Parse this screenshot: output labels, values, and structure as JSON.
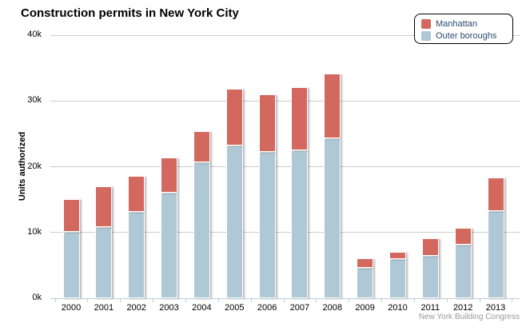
{
  "title": "Construction permits in New York City",
  "credit": "New York Building Congress",
  "colors": {
    "manhattan": "#d2685e",
    "outer_boroughs": "#aec8d5",
    "gridline": "#cccccc",
    "axis_line": "#b9ccd4",
    "legend_text": "#274b6d",
    "credit_text": "#999999"
  },
  "chart_data": {
    "type": "bar",
    "stacked": true,
    "title": "Construction permits in New York City",
    "xlabel": "",
    "ylabel": "Units authorized",
    "values_unit": "thousands of units",
    "categories": [
      "2000",
      "2001",
      "2002",
      "2003",
      "2004",
      "2005",
      "2006",
      "2007",
      "2008",
      "2009",
      "2010",
      "2011",
      "2012",
      "2013"
    ],
    "series": [
      {
        "name": "Manhattan",
        "color": "#d2685e",
        "stack_order": "top",
        "values_thousands": [
          5.0,
          6.2,
          5.5,
          5.4,
          4.7,
          8.6,
          8.8,
          9.6,
          9.9,
          1.5,
          1.1,
          2.6,
          2.6,
          5.0
        ]
      },
      {
        "name": "Outer boroughs",
        "color": "#aec8d5",
        "stack_order": "bottom",
        "values_thousands": [
          10.1,
          10.8,
          13.1,
          16.0,
          20.7,
          23.2,
          22.2,
          22.5,
          24.3,
          4.6,
          6.0,
          6.5,
          8.1,
          13.3
        ]
      }
    ],
    "stack_totals_thousands": [
      15.1,
      17.0,
      18.6,
      21.4,
      25.4,
      31.8,
      31.0,
      32.1,
      34.2,
      6.1,
      7.1,
      9.1,
      10.7,
      18.3
    ],
    "ylim": [
      0,
      40
    ],
    "yticks": [
      {
        "value": 0,
        "label": "0k"
      },
      {
        "value": 10,
        "label": "10k"
      },
      {
        "value": 20,
        "label": "20k"
      },
      {
        "value": 30,
        "label": "30k"
      },
      {
        "value": 40,
        "label": "40k"
      }
    ],
    "grid": true,
    "legend_position": "top-right"
  }
}
